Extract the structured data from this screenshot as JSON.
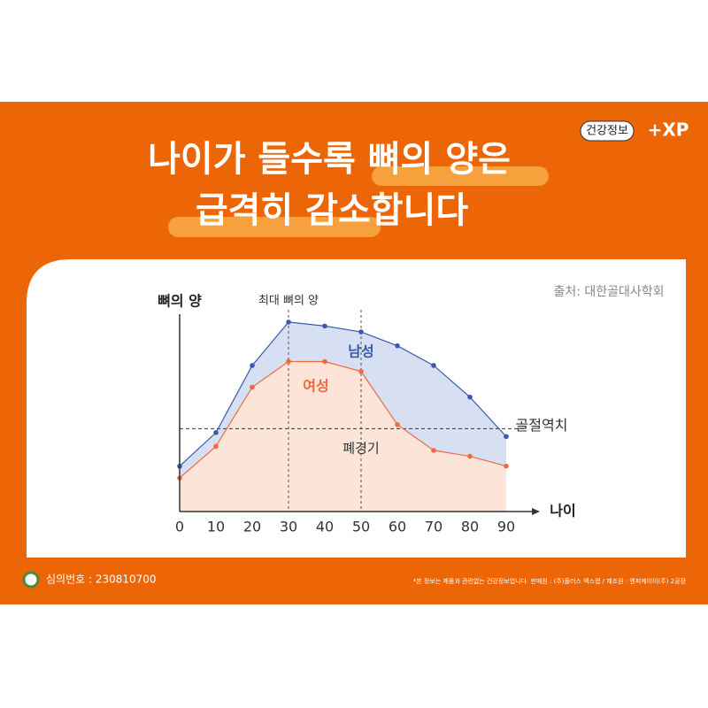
{
  "header": {
    "badge": "건강정보",
    "logo": "+XP",
    "title_line1": [
      "나이가 들수록 ",
      "뼈의 양은"
    ],
    "title_line2": [
      "급격히 감소",
      "합니다"
    ]
  },
  "source": "출처: 대한골대사학회",
  "chart_data": {
    "type": "area",
    "ylabel": "뼈의 양",
    "xlabel": "나이",
    "x": [
      0,
      10,
      20,
      30,
      40,
      50,
      60,
      70,
      80,
      90
    ],
    "xlim": [
      0,
      90
    ],
    "xticks": [
      0,
      10,
      20,
      30,
      40,
      50,
      60,
      70,
      80,
      90
    ],
    "ylim": [
      0,
      100
    ],
    "series": [
      {
        "name": "남성",
        "color": "#3a5bab",
        "fill": "#d7e0f3",
        "values": [
          23,
          40,
          74,
          96,
          94,
          91,
          84,
          74,
          58,
          38
        ]
      },
      {
        "name": "여성",
        "color": "#ec6a3c",
        "fill": "#fde4d9",
        "values": [
          17,
          33,
          63,
          76,
          76,
          71,
          44,
          31,
          28,
          23
        ]
      }
    ],
    "threshold": {
      "value": 42,
      "label": "골절역치"
    },
    "vlines": [
      {
        "x": 30,
        "label": "최대 뼈의 양"
      },
      {
        "x": 50,
        "label": "폐경기"
      }
    ]
  },
  "footer": {
    "review": "심의번호 : 230810700",
    "notice": "*본 정보는 제품과 관련없는 건강정보입니다.   판매원 : (주)플러스 엑스랩  / 제조원 : 엔피케이이(주) 2공장"
  }
}
